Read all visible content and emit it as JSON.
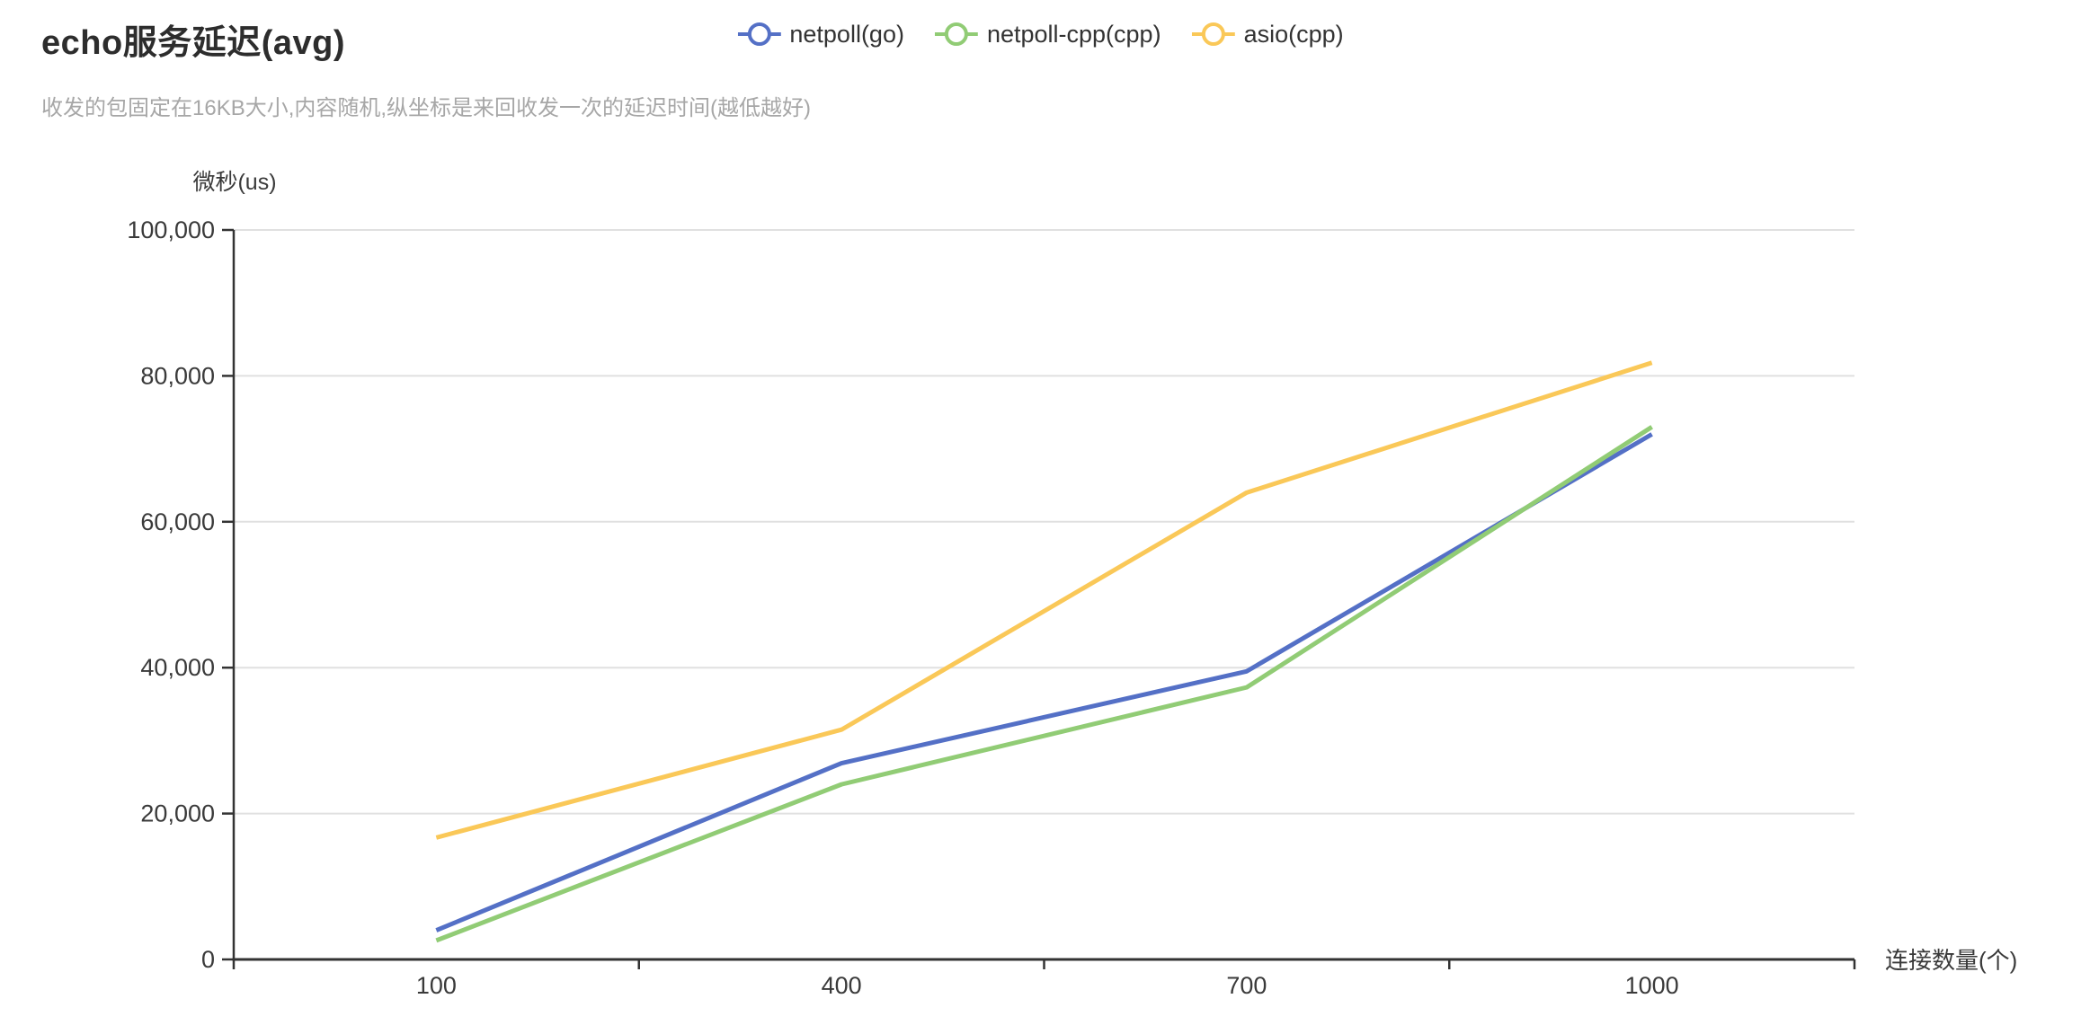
{
  "header": {
    "title": "echo服务延迟(avg)",
    "subtitle": "收发的包固定在16KB大小,内容随机,纵坐标是来回收发一次的延迟时间(越低越好)"
  },
  "chart_data": {
    "type": "line",
    "title": "echo服务延迟(avg)",
    "subtitle": "收发的包固定在16KB大小,内容随机,纵坐标是来回收发一次的延迟时间(越低越好)",
    "x": [
      100,
      400,
      700,
      1000
    ],
    "x_tick_labels": [
      "100",
      "400",
      "700",
      "1000"
    ],
    "xlabel": "连接数量(个)",
    "ylabel": "微秒(us)",
    "ylim": [
      0,
      100000
    ],
    "y_ticks": [
      0,
      20000,
      40000,
      60000,
      80000,
      100000
    ],
    "y_tick_labels": [
      "0",
      "20,000",
      "40,000",
      "60,000",
      "80,000",
      "100,000"
    ],
    "grid": "horizontal-only",
    "legend_position": "top-center",
    "series": [
      {
        "name": "netpoll(go)",
        "color": "#5470C6",
        "values": [
          4000,
          26900,
          39500,
          72000
        ]
      },
      {
        "name": "netpoll-cpp(cpp)",
        "color": "#91CC75",
        "values": [
          2600,
          24000,
          37300,
          73000
        ]
      },
      {
        "name": "asio(cpp)",
        "color": "#FAC858",
        "values": [
          16700,
          31500,
          64000,
          81800
        ]
      }
    ]
  },
  "colors": {
    "axis_line": "#333333",
    "grid_line": "#e0e0e0",
    "tick_label": "#3a3a3a",
    "axis_name": "#3a3a3a",
    "title": "#2d2d2d",
    "subtitle": "#a7a7a7",
    "background": "#ffffff"
  }
}
